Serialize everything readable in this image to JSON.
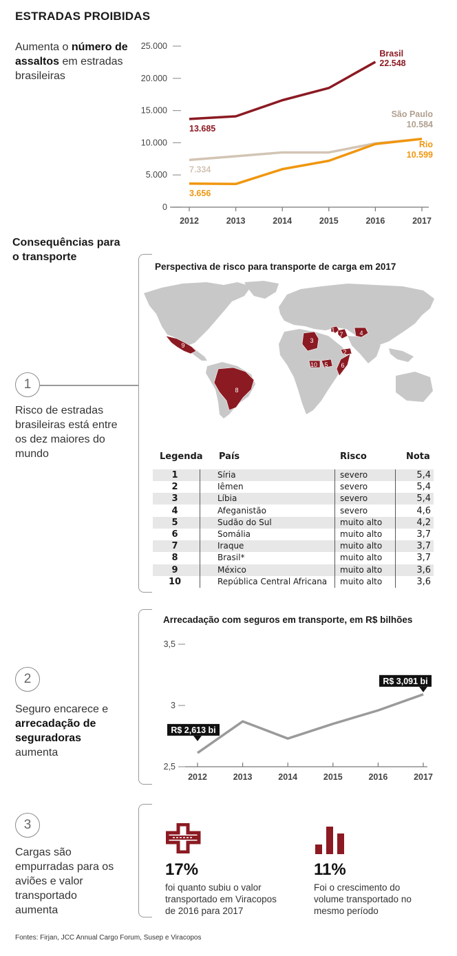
{
  "title": "ESTRADAS PROIBIDAS",
  "intro": {
    "pre": "Aumenta o ",
    "bold": "número de assaltos",
    "post": " em estradas brasileiras"
  },
  "chart_data": [
    {
      "type": "line",
      "x": [
        "2012",
        "2013",
        "2014",
        "2015",
        "2016",
        "2017"
      ],
      "yticks": [
        "25.000",
        "20.000",
        "15.000",
        "10.000",
        "5.000",
        "0"
      ],
      "ylim": [
        0,
        25000
      ],
      "series": [
        {
          "name": "Brasil",
          "color": "#8b1a22",
          "values": [
            13685,
            14100,
            16600,
            18500,
            22548,
            null
          ],
          "end_label": "22.548",
          "start_label": "13.685"
        },
        {
          "name": "São Paulo",
          "color": "#d3c4b4",
          "values": [
            7334,
            7900,
            8500,
            8500,
            9900,
            10584
          ],
          "end_label": "10.584",
          "start_label": "7.334"
        },
        {
          "name": "Rio",
          "color": "#f0960f",
          "values": [
            3656,
            3600,
            5900,
            7200,
            9800,
            10599
          ],
          "end_label": "10.599",
          "start_label": "3.656"
        }
      ]
    },
    {
      "type": "line",
      "title": "Arrecadação com seguros em transporte, em R$ bilhões",
      "x": [
        "2012",
        "2013",
        "2014",
        "2015",
        "2016",
        "2017"
      ],
      "yticks": [
        "3,5",
        "3",
        "2,5"
      ],
      "ylim": [
        2.5,
        3.5
      ],
      "series": [
        {
          "color": "#9a9a9a",
          "values": [
            2.613,
            2.87,
            2.73,
            2.85,
            2.96,
            3.091
          ]
        }
      ],
      "callouts": {
        "start": "R$ 2,613 bi",
        "end": "R$ 3,091 bi"
      }
    }
  ],
  "section_heading": "Consequências para o transporte",
  "map": {
    "title": "Perspectiva de risco para transporte de carga em 2017",
    "land_color": "#c8c8c8",
    "risk_color": "#8b1a22",
    "legend_headers": {
      "num": "Legenda",
      "country": "País",
      "risk": "Risco",
      "score": "Nota"
    },
    "rows": [
      {
        "num": "1",
        "country": "Síria",
        "risk": "severo",
        "score": "5,4"
      },
      {
        "num": "2",
        "country": "Iêmen",
        "risk": "severo",
        "score": "5,4"
      },
      {
        "num": "3",
        "country": "Líbia",
        "risk": "severo",
        "score": "5,4"
      },
      {
        "num": "4",
        "country": "Afeganistão",
        "risk": "severo",
        "score": "4,6"
      },
      {
        "num": "5",
        "country": "Sudão do Sul",
        "risk": "muito alto",
        "score": "4,2"
      },
      {
        "num": "6",
        "country": "Somália",
        "risk": "muito alto",
        "score": "3,7"
      },
      {
        "num": "7",
        "country": "Iraque",
        "risk": "muito alto",
        "score": "3,7"
      },
      {
        "num": "8",
        "country": "Brasil*",
        "risk": "muito alto",
        "score": "3,7"
      },
      {
        "num": "9",
        "country": "México",
        "risk": "muito alto",
        "score": "3,6"
      },
      {
        "num": "10",
        "country": "República Central Africana",
        "risk": "muito alto",
        "score": "3,6"
      }
    ]
  },
  "points": [
    {
      "num": "1",
      "text": "Risco de estradas brasileiras está entre os dez maiores do mundo"
    },
    {
      "num": "2",
      "pre": "Seguro encarece e ",
      "bold": "arrecadação de seguradoras",
      "post": " aumenta"
    },
    {
      "num": "3",
      "text": "Cargas são empurradas para os aviões e valor transportado aumenta"
    }
  ],
  "stats": [
    {
      "icon": "airplane-icon",
      "value": "17%",
      "desc": "foi quanto subiu o valor transportado em Viracopos de 2016 para 2017"
    },
    {
      "icon": "bar-chart-icon",
      "value": "11%",
      "desc": "Foi o crescimento do volume transportado no mesmo período"
    }
  ],
  "sources": "Fontes: Firjan, JCC Annual Cargo Forum, Susep e Viracopos"
}
